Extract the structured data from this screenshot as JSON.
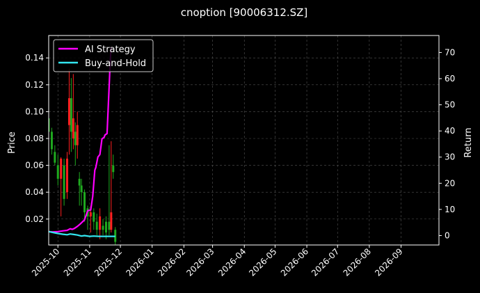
{
  "chart_data": {
    "type": "line",
    "title": "cnoption [90006312.SZ]",
    "ylabel_left": "Price",
    "ylabel_right": "Return",
    "x_range": [
      "2025-09-22",
      "2026-10-08"
    ],
    "x_ticks": [
      "2025-10",
      "2025-11",
      "2025-12",
      "2026-01",
      "2026-02",
      "2026-03",
      "2026-04",
      "2026-05",
      "2026-06",
      "2026-07",
      "2026-08",
      "2026-09"
    ],
    "y_left_range": [
      0.0007,
      0.1567
    ],
    "y_left_ticks": [
      "0.02",
      "0.04",
      "0.06",
      "0.08",
      "0.10",
      "0.12",
      "0.14"
    ],
    "y_left_tick_values": [
      0.02,
      0.04,
      0.06,
      0.08,
      0.1,
      0.12,
      0.14
    ],
    "y_right_range": [
      -3.6,
      76.5
    ],
    "y_right_ticks": [
      "0",
      "10",
      "20",
      "30",
      "40",
      "50",
      "60",
      "70"
    ],
    "y_right_tick_values": [
      0,
      10,
      20,
      30,
      40,
      50,
      60,
      70
    ],
    "grid": true,
    "legend_position": "top-left",
    "colors": {
      "up_candle": "#ff2020",
      "down_candle": "#1faa1f",
      "ai_strategy": "#ff00ff",
      "buy_and_hold": "#33e6f0",
      "grid": "#555555",
      "axis": "#ffffff"
    },
    "series": [
      {
        "name": "AI Strategy",
        "axis": "right",
        "x": [
          "2025-09-22",
          "2025-09-26",
          "2025-10-01",
          "2025-10-06",
          "2025-10-10",
          "2025-10-13",
          "2025-10-15",
          "2025-10-17",
          "2025-10-20",
          "2025-10-23",
          "2025-10-27",
          "2025-10-30",
          "2025-11-02",
          "2025-11-04",
          "2025-11-06",
          "2025-11-07",
          "2025-11-09",
          "2025-11-11",
          "2025-11-13",
          "2025-11-15",
          "2025-11-16",
          "2025-11-18",
          "2025-11-19",
          "2025-11-20",
          "2025-11-21",
          "2025-11-22"
        ],
        "values": [
          1.5,
          1.4,
          1.5,
          1.8,
          2.0,
          2.6,
          2.4,
          2.7,
          3.5,
          4.5,
          6.0,
          9.5,
          9.8,
          15.0,
          25.0,
          26.0,
          30.0,
          31.0,
          37.0,
          37.5,
          38.5,
          39.0,
          48.0,
          57.0,
          66.0,
          72.0
        ]
      },
      {
        "name": "Buy-and-Hold",
        "axis": "right",
        "x": [
          "2025-09-22",
          "2025-09-26",
          "2025-10-01",
          "2025-10-06",
          "2025-10-10",
          "2025-10-13",
          "2025-10-17",
          "2025-10-20",
          "2025-10-24",
          "2025-10-27",
          "2025-11-01",
          "2025-11-05",
          "2025-11-10",
          "2025-11-15",
          "2025-11-20",
          "2025-11-26"
        ],
        "values": [
          1.5,
          1.2,
          0.8,
          0.5,
          0.3,
          0.6,
          0.4,
          0.2,
          -0.2,
          0.0,
          -0.3,
          -0.2,
          -0.3,
          -0.3,
          -0.3,
          -0.3
        ]
      }
    ],
    "candles": {
      "axis": "left",
      "x": [
        "2025-09-22",
        "2025-09-25",
        "2025-09-28",
        "2025-10-01",
        "2025-10-04",
        "2025-10-07",
        "2025-10-10",
        "2025-10-12",
        "2025-10-14",
        "2025-10-16",
        "2025-10-18",
        "2025-10-20",
        "2025-10-22",
        "2025-10-24",
        "2025-10-27",
        "2025-10-30",
        "2025-11-02",
        "2025-11-05",
        "2025-11-08",
        "2025-11-11",
        "2025-11-14",
        "2025-11-17",
        "2025-11-20",
        "2025-11-22",
        "2025-11-24",
        "2025-11-26"
      ],
      "open": [
        0.095,
        0.085,
        0.07,
        0.06,
        0.05,
        0.06,
        0.04,
        0.09,
        0.11,
        0.08,
        0.085,
        0.075,
        0.05,
        0.045,
        0.04,
        0.028,
        0.022,
        0.025,
        0.018,
        0.012,
        0.015,
        0.018,
        0.018,
        0.012,
        0.06,
        0.012
      ],
      "close": [
        0.085,
        0.072,
        0.062,
        0.05,
        0.065,
        0.035,
        0.065,
        0.11,
        0.085,
        0.095,
        0.075,
        0.09,
        0.045,
        0.04,
        0.025,
        0.022,
        0.025,
        0.018,
        0.012,
        0.022,
        0.012,
        0.01,
        0.012,
        0.025,
        0.055,
        0.003
      ],
      "high": [
        0.097,
        0.088,
        0.075,
        0.068,
        0.066,
        0.065,
        0.07,
        0.132,
        0.125,
        0.128,
        0.092,
        0.1,
        0.055,
        0.05,
        0.042,
        0.03,
        0.03,
        0.028,
        0.024,
        0.028,
        0.02,
        0.022,
        0.075,
        0.078,
        0.068,
        0.014
      ],
      "low": [
        0.08,
        0.068,
        0.06,
        0.045,
        0.022,
        0.03,
        0.035,
        0.068,
        0.07,
        0.072,
        0.06,
        0.065,
        0.03,
        0.03,
        0.018,
        0.012,
        0.01,
        0.012,
        0.008,
        0.005,
        0.008,
        0.005,
        0.008,
        0.01,
        0.05,
        0.001
      ]
    }
  }
}
